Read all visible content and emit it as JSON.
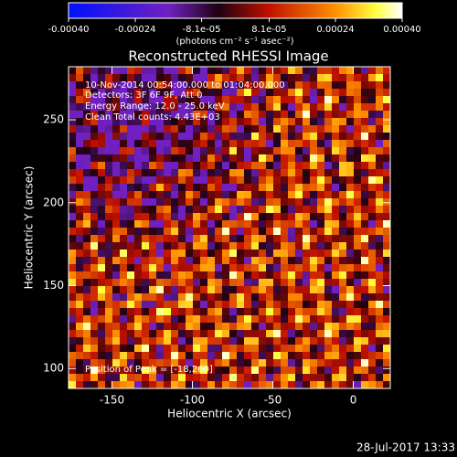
{
  "chart_data": {
    "type": "image",
    "title": "Reconstructed RHESSI Image",
    "colorbar": {
      "lim": [
        -0.0004,
        0.0004
      ],
      "ticks": [
        {
          "value": -0.0004,
          "label": "-0.00040"
        },
        {
          "value": -0.00024,
          "label": "-0.00024"
        },
        {
          "value": -8.1e-05,
          "label": "-8.1e-05"
        },
        {
          "value": 8.1e-05,
          "label": "8.1e-05"
        },
        {
          "value": 0.00024,
          "label": "0.00024"
        },
        {
          "value": 0.0004,
          "label": "0.00040"
        }
      ],
      "label": "(photons cm⁻² s⁻¹ asec⁻²)"
    },
    "x_label": "Heliocentric X (arcsec)",
    "y_label": "Heliocentric Y (arcsec)",
    "xlim": [
      -177,
      23
    ],
    "ylim": [
      88,
      282
    ],
    "xticks": [
      -150,
      -100,
      -50,
      0
    ],
    "yticks": [
      100,
      150,
      200,
      250
    ],
    "annotations": [
      "10-Nov-2014 00:54:00.000 to 01:04:00.000",
      "Detectors: 3F 6F 9F, Att 0",
      "Energy Range: 12.0 - 25.0 keV",
      "Clean     Total counts: 4.43E+03"
    ],
    "peak_note": "Position of Peak = [-18,260]",
    "footer": "28-Jul-2017 13:33"
  }
}
